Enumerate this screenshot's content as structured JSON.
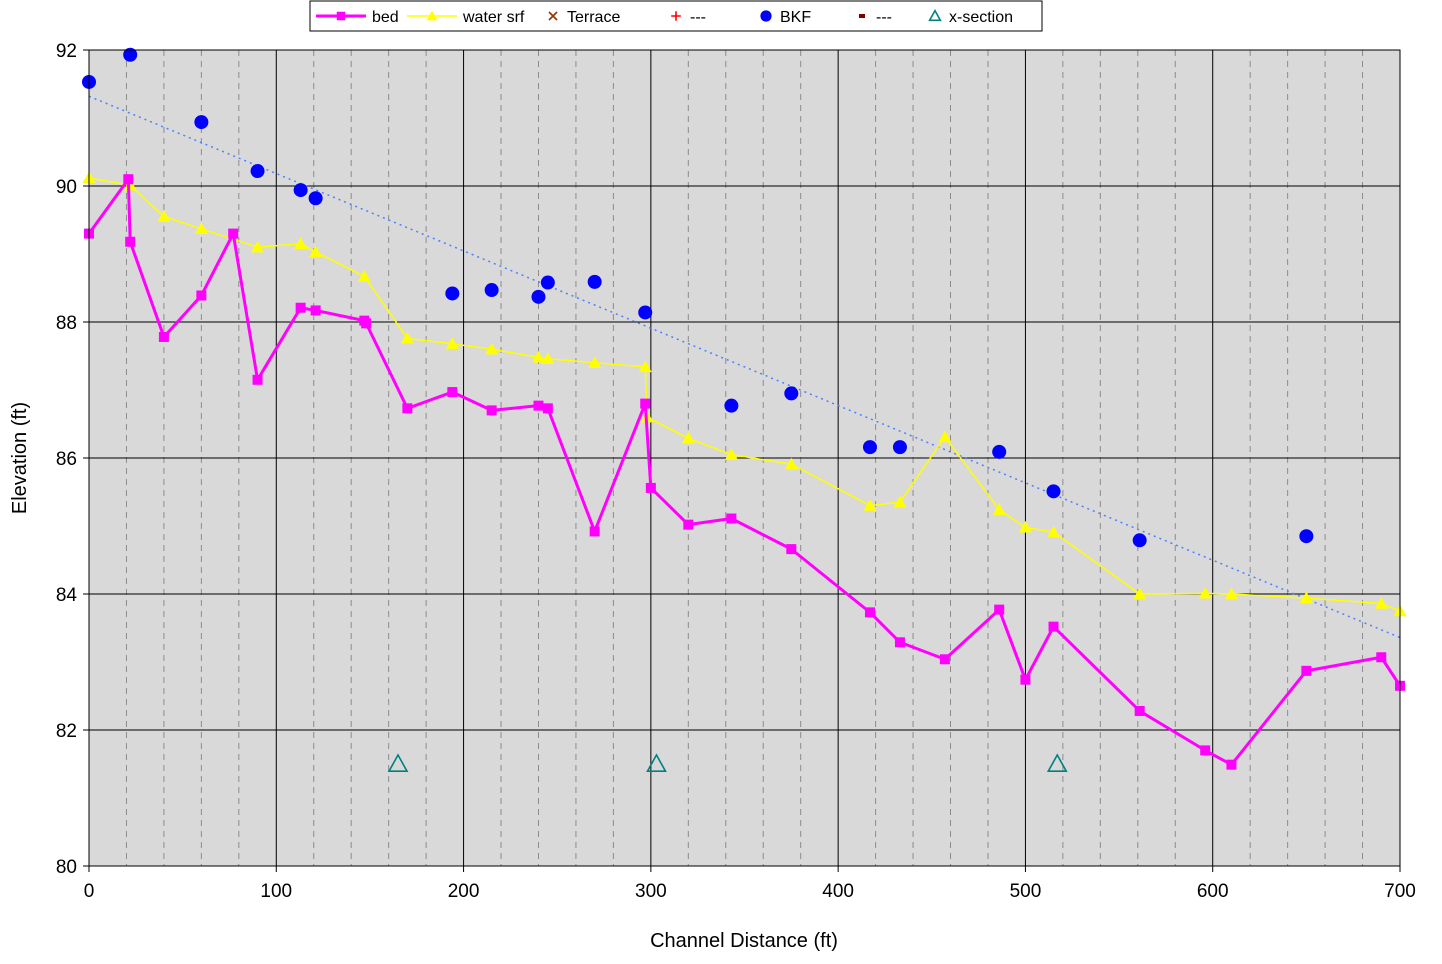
{
  "chart_data": {
    "type": "line",
    "title": "",
    "xlabel": "Channel Distance (ft)",
    "ylabel": "Elevation (ft)",
    "xlim": [
      0,
      700
    ],
    "ylim": [
      80,
      92
    ],
    "x_ticks": [
      0,
      100,
      200,
      300,
      400,
      500,
      600,
      700
    ],
    "y_ticks": [
      80,
      82,
      84,
      86,
      88,
      90,
      92
    ],
    "x_minor_step": 20,
    "grid": true,
    "legend_position": "top-center",
    "plot_background": "#d9d9d9",
    "legend": [
      {
        "label": "bed",
        "marker": "square",
        "color": "#ff00ff",
        "line": true
      },
      {
        "label": "water srf",
        "marker": "triangle",
        "color": "#ffff00",
        "line": true
      },
      {
        "label": "Terrace",
        "marker": "x",
        "color": "#993300",
        "line": false
      },
      {
        "label": "---",
        "marker": "plus",
        "color": "#ff0000",
        "line": false
      },
      {
        "label": "BKF",
        "marker": "circle",
        "color": "#0000ff",
        "line": false
      },
      {
        "label": "---",
        "marker": "dash",
        "color": "#800000",
        "line": false
      },
      {
        "label": "x-section",
        "marker": "triangle-open",
        "color": "#008080",
        "line": false
      }
    ],
    "series": [
      {
        "name": "bed",
        "color": "#ff00ff",
        "marker": "square",
        "points": [
          [
            0,
            89.3
          ],
          [
            21,
            90.1
          ],
          [
            22,
            89.18
          ],
          [
            40,
            87.78
          ],
          [
            60,
            88.39
          ],
          [
            77,
            89.3
          ],
          [
            90,
            87.15
          ],
          [
            113,
            88.21
          ],
          [
            121,
            88.17
          ],
          [
            147,
            88.02
          ],
          [
            148,
            87.98
          ],
          [
            170,
            86.73
          ],
          [
            194,
            86.97
          ],
          [
            215,
            86.7
          ],
          [
            240,
            86.77
          ],
          [
            245,
            86.73
          ],
          [
            270,
            84.92
          ],
          [
            297,
            86.8
          ],
          [
            300,
            85.56
          ],
          [
            320,
            85.02
          ],
          [
            343,
            85.11
          ],
          [
            375,
            84.66
          ],
          [
            417,
            83.73
          ],
          [
            433,
            83.29
          ],
          [
            457,
            83.04
          ],
          [
            486,
            83.77
          ],
          [
            500,
            82.74
          ],
          [
            515,
            83.52
          ],
          [
            561,
            82.28
          ],
          [
            596,
            81.7
          ],
          [
            610,
            81.49
          ],
          [
            650,
            82.87
          ],
          [
            690,
            83.07
          ],
          [
            700,
            82.65
          ]
        ]
      },
      {
        "name": "water srf",
        "color": "#ffff00",
        "marker": "triangle",
        "points": [
          [
            0,
            90.12
          ],
          [
            22,
            90.01
          ],
          [
            40,
            89.55
          ],
          [
            60,
            89.37
          ],
          [
            90,
            89.1
          ],
          [
            113,
            89.15
          ],
          [
            121,
            89.03
          ],
          [
            147,
            88.67
          ],
          [
            170,
            87.76
          ],
          [
            194,
            87.68
          ],
          [
            215,
            87.6
          ],
          [
            240,
            87.48
          ],
          [
            245,
            87.46
          ],
          [
            270,
            87.4
          ],
          [
            297,
            87.34
          ],
          [
            298,
            86.6
          ],
          [
            320,
            86.29
          ],
          [
            343,
            86.05
          ],
          [
            375,
            85.91
          ],
          [
            417,
            85.3
          ],
          [
            433,
            85.35
          ],
          [
            457,
            86.31
          ],
          [
            486,
            85.24
          ],
          [
            500,
            84.98
          ],
          [
            515,
            84.91
          ],
          [
            561,
            84.0
          ],
          [
            596,
            84.01
          ],
          [
            610,
            84.0
          ],
          [
            650,
            83.94
          ],
          [
            690,
            83.86
          ],
          [
            700,
            83.75
          ]
        ]
      },
      {
        "name": "BKF",
        "color": "#0000ff",
        "marker": "circle",
        "points": [
          [
            0,
            91.53
          ],
          [
            22,
            91.93
          ],
          [
            60,
            90.94
          ],
          [
            90,
            90.22
          ],
          [
            113,
            89.94
          ],
          [
            121,
            89.82
          ],
          [
            194,
            88.42
          ],
          [
            215,
            88.47
          ],
          [
            240,
            88.37
          ],
          [
            245,
            88.58
          ],
          [
            270,
            88.59
          ],
          [
            297,
            88.14
          ],
          [
            343,
            86.77
          ],
          [
            375,
            86.95
          ],
          [
            417,
            86.16
          ],
          [
            433,
            86.16
          ],
          [
            486,
            86.09
          ],
          [
            515,
            85.51
          ],
          [
            561,
            84.79
          ],
          [
            650,
            84.85
          ]
        ]
      },
      {
        "name": "x-section",
        "color": "#008080",
        "marker": "triangle-open",
        "points": [
          [
            165,
            81.5
          ],
          [
            303,
            81.5
          ],
          [
            517,
            81.5
          ]
        ]
      }
    ],
    "trendline": {
      "series": "BKF",
      "color": "#4d7fff",
      "points": [
        [
          0,
          91.32
        ],
        [
          700,
          83.36
        ]
      ]
    }
  }
}
